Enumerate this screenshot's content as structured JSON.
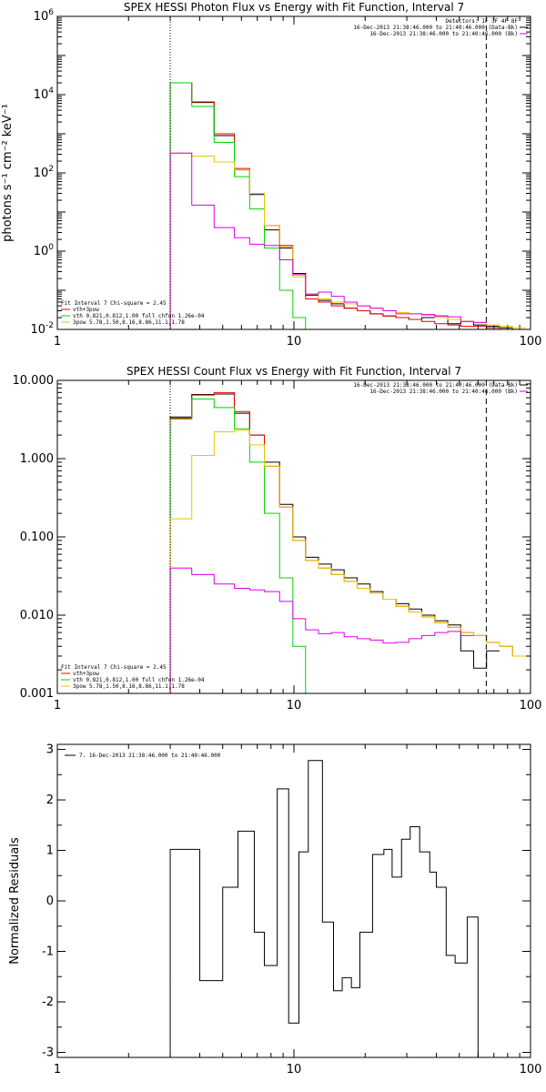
{
  "colors": {
    "black": "#000000",
    "red": "#e60000",
    "green": "#00d400",
    "yellow": "#e6c800",
    "magenta": "#e000e0"
  },
  "chart_data": [
    {
      "type": "line",
      "title": "SPEX HESSI Photon Flux vs Energy with Fit Function, Interval 7",
      "ylabel": "photons s⁻¹ cm⁻² keV⁻¹",
      "xlabel": "",
      "xscale": "log",
      "yscale": "log",
      "xlim": [
        1,
        100
      ],
      "ylim": [
        0.01,
        1000000
      ],
      "xticks": [
        "1",
        "10",
        "100"
      ],
      "yticks": [
        {
          "v": 0.01,
          "b": "10",
          "e": "-2"
        },
        {
          "v": 1,
          "b": "10",
          "e": "0"
        },
        {
          "v": 100,
          "b": "10",
          "e": "2"
        },
        {
          "v": 10000,
          "b": "10",
          "e": "4"
        },
        {
          "v": 1000000,
          "b": "10",
          "e": "6"
        }
      ],
      "vlines": [
        {
          "x": 3.0,
          "style": "dotted"
        },
        {
          "x": 65,
          "style": "dashed"
        }
      ],
      "legend_tr": [
        {
          "text": "Detectors: 1F 3F 4F 8F",
          "color": ""
        },
        {
          "text": "16-Dec-2013 21:38:46.000 to 21:40:46.000 (Data-Bk)",
          "color": "black"
        },
        {
          "text": "16-Dec-2013 21:38:46.000 to 21:40:46.000 (Bk)",
          "color": "magenta"
        }
      ],
      "legend_bl": [
        {
          "text": "Fit Interval 7   Chi-square = 2.45",
          "color": ""
        },
        {
          "text": "vth+3pow",
          "color": "red"
        },
        {
          "text": "vth 0.821,0.812,1.00  full chfon 1.26e-04",
          "color": "green"
        },
        {
          "text": "3pow 5.78,1.50,8.16,8.86,11.1,1.78",
          "color": "yellow"
        }
      ],
      "edges": [
        3.0,
        3.7,
        4.6,
        5.6,
        6.5,
        7.5,
        8.7,
        9.9,
        11.2,
        12.7,
        14.4,
        16.3,
        18.5,
        21,
        23.8,
        27,
        30.6,
        34.7,
        39.4,
        44.7,
        50.7,
        57.5,
        65.2,
        74,
        84,
        95.3
      ],
      "series": [
        {
          "name": "Data-Bk",
          "color": "black",
          "values": [
            20000,
            6300,
            900,
            120,
            28,
            3.5,
            1.2,
            0.27,
            0.075,
            0.055,
            0.045,
            0.035,
            0.03,
            0.025,
            0.022,
            0.02,
            0.018,
            0.02,
            0.022,
            0.014,
            0.016,
            0.013,
            0.012,
            0.011,
            0.01
          ]
        },
        {
          "name": "vth+3pow",
          "color": "red",
          "values": [
            20000,
            6500,
            1000,
            130,
            30,
            4.5,
            1.4,
            0.25,
            0.06,
            0.05,
            0.04,
            0.035,
            0.03,
            0.025,
            0.022,
            0.02,
            0.018,
            0.016,
            0.014,
            0.013,
            0.012,
            0.012,
            0.011,
            0.01,
            0.01
          ]
        },
        {
          "name": "vth",
          "color": "green",
          "values": [
            20000,
            5000,
            600,
            80,
            12,
            1.2,
            0.1,
            0.02,
            0.01
          ]
        },
        {
          "name": "3pow",
          "color": "yellow",
          "values": [
            320,
            270,
            190,
            120,
            30,
            4.5,
            1.3,
            0.22,
            0.08,
            0.06,
            0.05,
            0.045,
            0.04,
            0.035,
            0.03,
            0.027,
            0.025,
            0.023,
            0.02,
            0.018,
            0.016,
            0.015,
            0.013,
            0.012,
            0.011
          ]
        },
        {
          "name": "Bk",
          "color": "magenta",
          "values": [
            320,
            15,
            4,
            2.2,
            1.5,
            1.4,
            0.6,
            0.25,
            0.08,
            0.09,
            0.07,
            0.05,
            0.04,
            0.035,
            0.03,
            0.025,
            0.025,
            0.024,
            0.022,
            0.021,
            0.016,
            0.015
          ]
        }
      ]
    },
    {
      "type": "line",
      "title": "SPEX HESSI Count Flux vs Energy with Fit Function, Interval 7",
      "ylabel": "",
      "xlabel": "",
      "xscale": "log",
      "yscale": "log",
      "xlim": [
        1,
        100
      ],
      "ylim": [
        0.001,
        10
      ],
      "xticks": [
        "1",
        "10",
        "100"
      ],
      "yticks": [
        {
          "v": 0.001,
          "b": "0.001",
          "e": ""
        },
        {
          "v": 0.01,
          "b": "0.010",
          "e": ""
        },
        {
          "v": 0.1,
          "b": "0.100",
          "e": ""
        },
        {
          "v": 1,
          "b": "1.000",
          "e": ""
        },
        {
          "v": 10,
          "b": "10.000",
          "e": ""
        }
      ],
      "vlines": [
        {
          "x": 3.0,
          "style": "dotted"
        },
        {
          "x": 65,
          "style": "dashed"
        }
      ],
      "legend_tr": [
        {
          "text": "16-Dec-2013 21:38:46.000 to 21:40:46.000 (Data-Bk)",
          "color": "black"
        },
        {
          "text": "16-Dec-2013 21:38:46.000 to 21:40:46.000 (Bk)",
          "color": "magenta"
        }
      ],
      "legend_bl": [
        {
          "text": "Fit Interval 7   Chi-square = 2.45",
          "color": ""
        },
        {
          "text": "vth+3pow",
          "color": "red"
        },
        {
          "text": "vth 0.821,0.812,1.00  full chfon 1.26e-04",
          "color": "green"
        },
        {
          "text": "3pow 5.78,1.50,8.16,8.86,11.1,1.78",
          "color": "yellow"
        }
      ],
      "edges": [
        3.0,
        3.7,
        4.6,
        5.6,
        6.5,
        7.5,
        8.7,
        9.9,
        11.2,
        12.7,
        14.4,
        16.3,
        18.5,
        21,
        23.8,
        27,
        30.6,
        34.7,
        39.4,
        44.7,
        50.7,
        57.5,
        65.2,
        74,
        84,
        95.3
      ],
      "series": [
        {
          "name": "Data-Bk",
          "color": "black",
          "values": [
            3.4,
            6.6,
            6.7,
            3.8,
            2.0,
            0.9,
            0.26,
            0.1,
            0.055,
            0.045,
            0.038,
            0.03,
            0.025,
            0.02,
            0.016,
            0.014,
            0.012,
            0.01,
            0.0085,
            0.0075,
            0.0035,
            0.0021,
            0.0035
          ]
        },
        {
          "name": "vth+3pow",
          "color": "red",
          "values": [
            3.3,
            6.5,
            7.0,
            4.0,
            2.0,
            0.8,
            0.24,
            0.09,
            0.05,
            0.04,
            0.033,
            0.027,
            0.022,
            0.019,
            0.016,
            0.013,
            0.011,
            0.0095,
            0.008,
            0.007,
            0.006,
            0.0055,
            0.0045,
            0.004,
            0.003
          ]
        },
        {
          "name": "vth",
          "color": "green",
          "values": [
            3.2,
            5.8,
            4.5,
            2.4,
            0.9,
            0.2,
            0.03,
            0.004,
            0.001
          ]
        },
        {
          "name": "3pow",
          "color": "yellow",
          "values": [
            0.17,
            1.1,
            2.2,
            2.3,
            1.5,
            0.8,
            0.24,
            0.09,
            0.05,
            0.04,
            0.033,
            0.027,
            0.022,
            0.019,
            0.016,
            0.013,
            0.011,
            0.0095,
            0.008,
            0.007,
            0.006,
            0.0055,
            0.0045,
            0.004,
            0.003
          ]
        },
        {
          "name": "Bk",
          "color": "magenta",
          "values": [
            0.04,
            0.033,
            0.025,
            0.022,
            0.021,
            0.02,
            0.015,
            0.009,
            0.0065,
            0.0058,
            0.006,
            0.0053,
            0.005,
            0.0048,
            0.0044,
            0.0045,
            0.005,
            0.0055,
            0.006,
            0.0062,
            0.0055
          ]
        }
      ]
    },
    {
      "type": "line",
      "title": "",
      "ylabel": "Normalized Residuals",
      "xlabel": "",
      "xscale": "log",
      "yscale": "linear",
      "xlim": [
        1,
        100
      ],
      "ylim": [
        -3.1,
        3.1
      ],
      "xticks": [
        "1",
        "10",
        "100"
      ],
      "yticks": [
        {
          "v": -3,
          "b": "-3",
          "e": ""
        },
        {
          "v": -2,
          "b": "-2",
          "e": ""
        },
        {
          "v": -1,
          "b": "-1",
          "e": ""
        },
        {
          "v": 0,
          "b": "0",
          "e": ""
        },
        {
          "v": 1,
          "b": "1",
          "e": ""
        },
        {
          "v": 2,
          "b": "2",
          "e": ""
        },
        {
          "v": 3,
          "b": "3",
          "e": ""
        }
      ],
      "vlines": [],
      "legend_tl": [
        {
          "text": "7. 16-Dec-2013 21:38:46.000 to 21:40:46.000",
          "color": "black"
        }
      ],
      "edges": [
        3.0,
        4.0,
        5.0,
        5.8,
        6.8,
        7.5,
        8.5,
        9.5,
        10.5,
        11.5,
        13.2,
        14.7,
        16.0,
        17.5,
        19.0,
        21.5,
        24.0,
        26.0,
        28.5,
        31.0,
        34.0,
        37.5,
        40.0,
        44.0,
        48.0,
        54.0,
        60.0,
        67.0
      ],
      "series": [
        {
          "name": "Residuals",
          "color": "black",
          "start_y": -3.1,
          "end_y": -3.1,
          "values": [
            1.02,
            -1.58,
            0.27,
            1.38,
            -0.62,
            -1.28,
            2.22,
            -2.42,
            0.97,
            2.78,
            -0.42,
            -1.78,
            -1.52,
            -1.72,
            -0.62,
            0.92,
            1.02,
            0.47,
            1.22,
            1.47,
            0.97,
            0.57,
            0.27,
            -1.08,
            -1.23,
            -0.32
          ]
        }
      ]
    }
  ]
}
